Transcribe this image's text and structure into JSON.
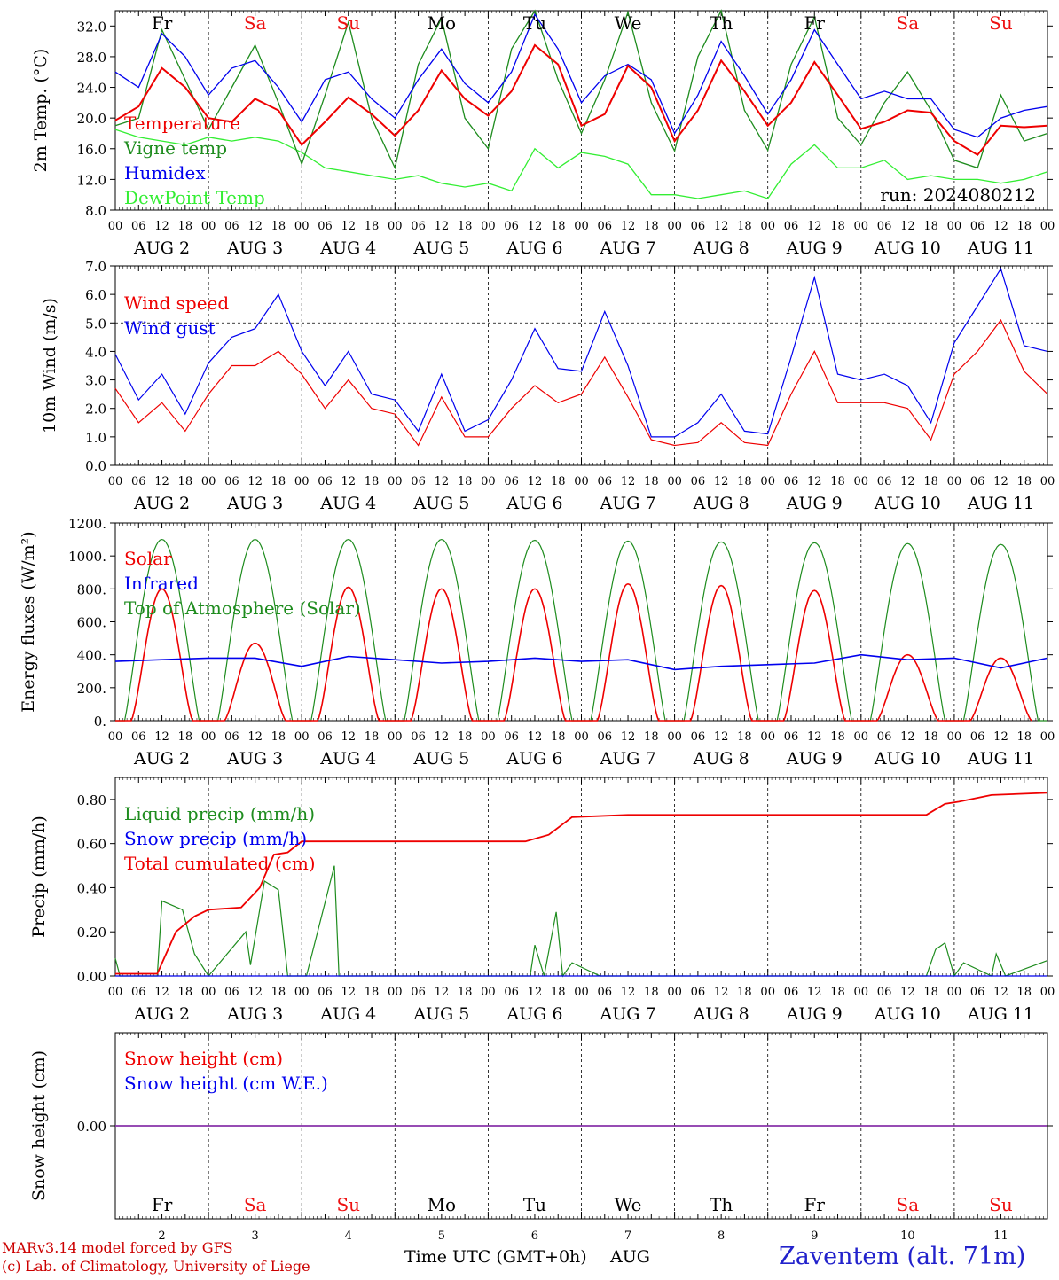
{
  "colors": {
    "red": "#ee0000",
    "blue": "#0000ee",
    "green": "#1e8c1e",
    "light_green": "#33ee33",
    "purple": "#8833aa",
    "weekend": "#ee1111",
    "weekday": "#000000"
  },
  "days": [
    {
      "abbr": "Fr",
      "num": "2",
      "weekend": false
    },
    {
      "abbr": "Sa",
      "num": "3",
      "weekend": true
    },
    {
      "abbr": "Su",
      "num": "4",
      "weekend": true
    },
    {
      "abbr": "Mo",
      "num": "5",
      "weekend": false
    },
    {
      "abbr": "Tu",
      "num": "6",
      "weekend": false
    },
    {
      "abbr": "We",
      "num": "7",
      "weekend": false
    },
    {
      "abbr": "Th",
      "num": "8",
      "weekend": false
    },
    {
      "abbr": "Fr",
      "num": "9",
      "weekend": false
    },
    {
      "abbr": "Sa",
      "num": "10",
      "weekend": true
    },
    {
      "abbr": "Su",
      "num": "11",
      "weekend": true
    }
  ],
  "hour_ticks": [
    "00",
    "06",
    "12",
    "18"
  ],
  "month": "AUG",
  "x_axis_label": "Time UTC (GMT+0h)",
  "month_label": "AUG",
  "footer": {
    "model": "MARv3.14 model forced by GFS",
    "copyright": "(c) Lab. of Climatology, University of Liege",
    "station": "Zaventem (alt. 71m)"
  },
  "chart_data": [
    {
      "type": "line",
      "ylabel": "2m Temp. (°C)",
      "ylim": [
        8,
        34
      ],
      "yticks": [
        "8.0",
        "12.0",
        "16.0",
        "20.0",
        "24.0",
        "28.0",
        "32.0"
      ],
      "ytick_values": [
        8,
        12,
        16,
        20,
        24,
        28,
        32
      ],
      "x_unit": "days since Aug 2 00 UTC",
      "run_label": "run: 2024080212",
      "series": [
        {
          "name": "Temperature",
          "color": "red",
          "x": [
            0,
            0.25,
            0.5,
            0.75,
            1,
            1.25,
            1.5,
            1.75,
            2,
            2.25,
            2.5,
            2.75,
            3,
            3.25,
            3.5,
            3.75,
            4,
            4.25,
            4.5,
            4.75,
            5,
            5.25,
            5.5,
            5.75,
            6,
            6.25,
            6.5,
            6.75,
            7,
            7.25,
            7.5,
            7.75,
            8,
            8.25,
            8.5,
            8.75,
            9,
            9.25,
            9.5,
            9.75,
            10
          ],
          "values": [
            19.7,
            21.5,
            26.5,
            24,
            20,
            19.5,
            22.5,
            21,
            16.5,
            19.5,
            22.7,
            20.5,
            17.7,
            21,
            26.2,
            22.5,
            20.3,
            23.5,
            29.5,
            27,
            19,
            20.5,
            26.8,
            24,
            17,
            21,
            27.5,
            23.5,
            19,
            22,
            27.3,
            23,
            18.6,
            19.5,
            21,
            20.7,
            17,
            15.2,
            19,
            18.8,
            19
          ]
        },
        {
          "name": "Vigne temp",
          "color": "green",
          "x": [
            0,
            0.25,
            0.5,
            0.75,
            1,
            1.25,
            1.5,
            1.75,
            2,
            2.25,
            2.5,
            2.75,
            3,
            3.25,
            3.5,
            3.75,
            4,
            4.25,
            4.5,
            4.75,
            5,
            5.25,
            5.5,
            5.75,
            6,
            6.25,
            6.5,
            6.75,
            7,
            7.25,
            7.5,
            7.75,
            8,
            8.25,
            8.5,
            8.75,
            9,
            9.25,
            9.5,
            9.75,
            10
          ],
          "values": [
            19,
            20,
            31.5,
            25,
            18.5,
            24,
            29.5,
            22,
            14,
            23,
            32.5,
            20,
            13.5,
            27,
            33,
            20,
            16,
            29,
            34,
            25,
            18,
            25,
            33.8,
            22,
            15.7,
            28,
            34,
            21,
            15.8,
            27,
            33.2,
            20,
            16.5,
            22,
            26,
            21,
            14.5,
            13.5,
            23,
            17,
            18
          ]
        },
        {
          "name": "Humidex",
          "color": "blue",
          "x": [
            0,
            0.25,
            0.5,
            0.75,
            1,
            1.25,
            1.5,
            1.75,
            2,
            2.25,
            2.5,
            2.75,
            3,
            3.25,
            3.5,
            3.75,
            4,
            4.25,
            4.5,
            4.75,
            5,
            5.25,
            5.5,
            5.75,
            6,
            6.25,
            6.5,
            6.75,
            7,
            7.25,
            7.5,
            7.75,
            8,
            8.25,
            8.5,
            8.75,
            9,
            9.25,
            9.5,
            9.75,
            10
          ],
          "values": [
            26,
            24,
            31,
            28,
            23,
            26.5,
            27.5,
            24,
            19.5,
            25,
            26,
            22.5,
            20,
            25,
            29,
            24.5,
            22,
            26,
            33.5,
            29,
            22,
            25.5,
            27,
            25,
            18,
            23,
            30,
            25.5,
            20.5,
            25,
            31.5,
            27,
            22.5,
            23.5,
            22.5,
            22.5,
            18.5,
            17.5,
            20,
            21,
            21.5
          ]
        },
        {
          "name": "DewPoint Temp",
          "color": "light_green",
          "x": [
            0,
            0.25,
            0.5,
            0.75,
            1,
            1.25,
            1.5,
            1.75,
            2,
            2.25,
            2.5,
            2.75,
            3,
            3.25,
            3.5,
            3.75,
            4,
            4.25,
            4.5,
            4.75,
            5,
            5.25,
            5.5,
            5.75,
            6,
            6.25,
            6.5,
            6.75,
            7,
            7.25,
            7.5,
            7.75,
            8,
            8.25,
            8.5,
            8.75,
            9,
            9.25,
            9.5,
            9.75,
            10
          ],
          "values": [
            18.5,
            17.5,
            17,
            16.5,
            17.5,
            17,
            17.5,
            17,
            15.5,
            13.5,
            13,
            12.5,
            12,
            12.5,
            11.5,
            11,
            11.5,
            10.5,
            16,
            13.5,
            15.5,
            15,
            14,
            10,
            10,
            9.5,
            10,
            10.5,
            9.5,
            14,
            16.5,
            13.5,
            13.5,
            14.5,
            12,
            12.5,
            12,
            12,
            11.5,
            12,
            13
          ]
        }
      ]
    },
    {
      "type": "line",
      "ylabel": "10m Wind (m/s)",
      "ylim": [
        0,
        7
      ],
      "yticks": [
        "0.0",
        "1.0",
        "2.0",
        "3.0",
        "4.0",
        "5.0",
        "6.0",
        "7.0"
      ],
      "ytick_values": [
        0,
        1,
        2,
        3,
        4,
        5,
        6,
        7
      ],
      "reference_line": 5,
      "series": [
        {
          "name": "Wind speed",
          "color": "red",
          "x": [
            0,
            0.25,
            0.5,
            0.75,
            1,
            1.25,
            1.5,
            1.75,
            2,
            2.25,
            2.5,
            2.75,
            3,
            3.25,
            3.5,
            3.75,
            4,
            4.25,
            4.5,
            4.75,
            5,
            5.25,
            5.5,
            5.75,
            6,
            6.25,
            6.5,
            6.75,
            7,
            7.25,
            7.5,
            7.75,
            8,
            8.25,
            8.5,
            8.75,
            9,
            9.25,
            9.5,
            9.75,
            10
          ],
          "values": [
            2.7,
            1.5,
            2.2,
            1.2,
            2.5,
            3.5,
            3.5,
            4.0,
            3.2,
            2.0,
            3.0,
            2.0,
            1.8,
            0.7,
            2.4,
            1.0,
            1.0,
            2.0,
            2.8,
            2.2,
            2.5,
            3.8,
            2.4,
            0.9,
            0.7,
            0.8,
            1.5,
            0.8,
            0.7,
            2.5,
            4.0,
            2.2,
            2.2,
            2.2,
            2.0,
            0.9,
            3.2,
            4.0,
            5.1,
            3.3,
            2.5
          ]
        },
        {
          "name": "Wind gust",
          "color": "blue",
          "x": [
            0,
            0.25,
            0.5,
            0.75,
            1,
            1.25,
            1.5,
            1.75,
            2,
            2.25,
            2.5,
            2.75,
            3,
            3.25,
            3.5,
            3.75,
            4,
            4.25,
            4.5,
            4.75,
            5,
            5.25,
            5.5,
            5.75,
            6,
            6.25,
            6.5,
            6.75,
            7,
            7.25,
            7.5,
            7.75,
            8,
            8.25,
            8.5,
            8.75,
            9,
            9.25,
            9.5,
            9.75,
            10
          ],
          "values": [
            3.9,
            2.3,
            3.2,
            1.8,
            3.6,
            4.5,
            4.8,
            6.0,
            4.0,
            2.8,
            4.0,
            2.5,
            2.3,
            1.2,
            3.2,
            1.2,
            1.6,
            3.0,
            4.8,
            3.4,
            3.3,
            5.4,
            3.5,
            1.0,
            1.0,
            1.5,
            2.5,
            1.2,
            1.1,
            3.8,
            6.6,
            3.2,
            3.0,
            3.2,
            2.8,
            1.5,
            4.3,
            5.6,
            6.9,
            4.2,
            4.0
          ]
        }
      ]
    },
    {
      "type": "line",
      "ylabel": "Energy fluxes (W/m²)",
      "ylim": [
        0,
        1200
      ],
      "yticks": [
        "0.",
        "200.",
        "400.",
        "600.",
        "800.",
        "1000.",
        "1200."
      ],
      "ytick_values": [
        0,
        200,
        400,
        600,
        800,
        1000,
        1200
      ],
      "solar_peaks": [
        800,
        470,
        810,
        800,
        800,
        830,
        820,
        790,
        400,
        380
      ],
      "toa_peaks": [
        1100,
        1100,
        1100,
        1100,
        1095,
        1090,
        1085,
        1080,
        1075,
        1070
      ],
      "infrared_x": [
        0,
        0.5,
        1,
        1.5,
        2,
        2.5,
        3,
        3.5,
        4,
        4.5,
        5,
        5.5,
        6,
        6.5,
        7,
        7.5,
        8,
        8.5,
        9,
        9.5,
        10
      ],
      "infrared_values": [
        360,
        370,
        380,
        380,
        330,
        390,
        370,
        350,
        360,
        380,
        360,
        370,
        310,
        330,
        340,
        350,
        400,
        370,
        380,
        320,
        380
      ],
      "series": [
        {
          "name": "Solar",
          "color": "red"
        },
        {
          "name": "Infrared",
          "color": "blue"
        },
        {
          "name": "Top of Atmosphere (Solar)",
          "color": "green"
        }
      ]
    },
    {
      "type": "line",
      "ylabel": "Precip (mm/h)",
      "ylim": [
        0,
        0.9
      ],
      "yticks": [
        "0.00",
        "0.20",
        "0.40",
        "0.60",
        "0.80"
      ],
      "ytick_values": [
        0,
        0.2,
        0.4,
        0.6,
        0.8
      ],
      "series": [
        {
          "name": "Liquid precip (mm/h)",
          "color": "green",
          "x": [
            0,
            0.05,
            0.45,
            0.5,
            0.72,
            0.85,
            1,
            1.4,
            1.45,
            1.6,
            1.75,
            1.85,
            2.05,
            2.35,
            2.4,
            2.45,
            4.45,
            4.5,
            4.6,
            4.73,
            4.8,
            4.9,
            5.2,
            8.7,
            8.8,
            8.9,
            9.0,
            9.1,
            9.4,
            9.45,
            9.55,
            10
          ],
          "values": [
            0.08,
            0,
            0,
            0.34,
            0.3,
            0.1,
            0,
            0.2,
            0.05,
            0.43,
            0.39,
            0,
            0,
            0.5,
            0,
            0,
            0,
            0.14,
            0,
            0.29,
            0,
            0.06,
            0,
            0,
            0.12,
            0.15,
            0,
            0.06,
            0,
            0.1,
            0,
            0.07
          ]
        },
        {
          "name": "Snow precip (mm/h)",
          "color": "blue",
          "x": [
            0,
            10
          ],
          "values": [
            0,
            0
          ]
        },
        {
          "name": "Total cumulated (cm)",
          "color": "red",
          "x": [
            0,
            0.45,
            0.65,
            0.85,
            1,
            1.35,
            1.55,
            1.7,
            1.85,
            2,
            2.45,
            4.4,
            4.65,
            4.9,
            5.5,
            8.7,
            8.9,
            9.05,
            9.4,
            10
          ],
          "values": [
            0.01,
            0.01,
            0.2,
            0.27,
            0.3,
            0.31,
            0.4,
            0.55,
            0.56,
            0.61,
            0.61,
            0.61,
            0.64,
            0.72,
            0.73,
            0.73,
            0.78,
            0.79,
            0.82,
            0.83
          ]
        }
      ]
    },
    {
      "type": "line",
      "ylabel": "Snow height (cm)",
      "ylim": [
        -1,
        1
      ],
      "yticks": [
        "0.00"
      ],
      "ytick_values": [
        0
      ],
      "series": [
        {
          "name": "Snow height (cm)",
          "color": "red",
          "x": [
            0,
            10
          ],
          "values": [
            0,
            0
          ]
        },
        {
          "name": "Snow height (cm W.E.)",
          "color": "blue",
          "x": [
            0,
            10
          ],
          "values": [
            0,
            0
          ]
        }
      ]
    }
  ]
}
